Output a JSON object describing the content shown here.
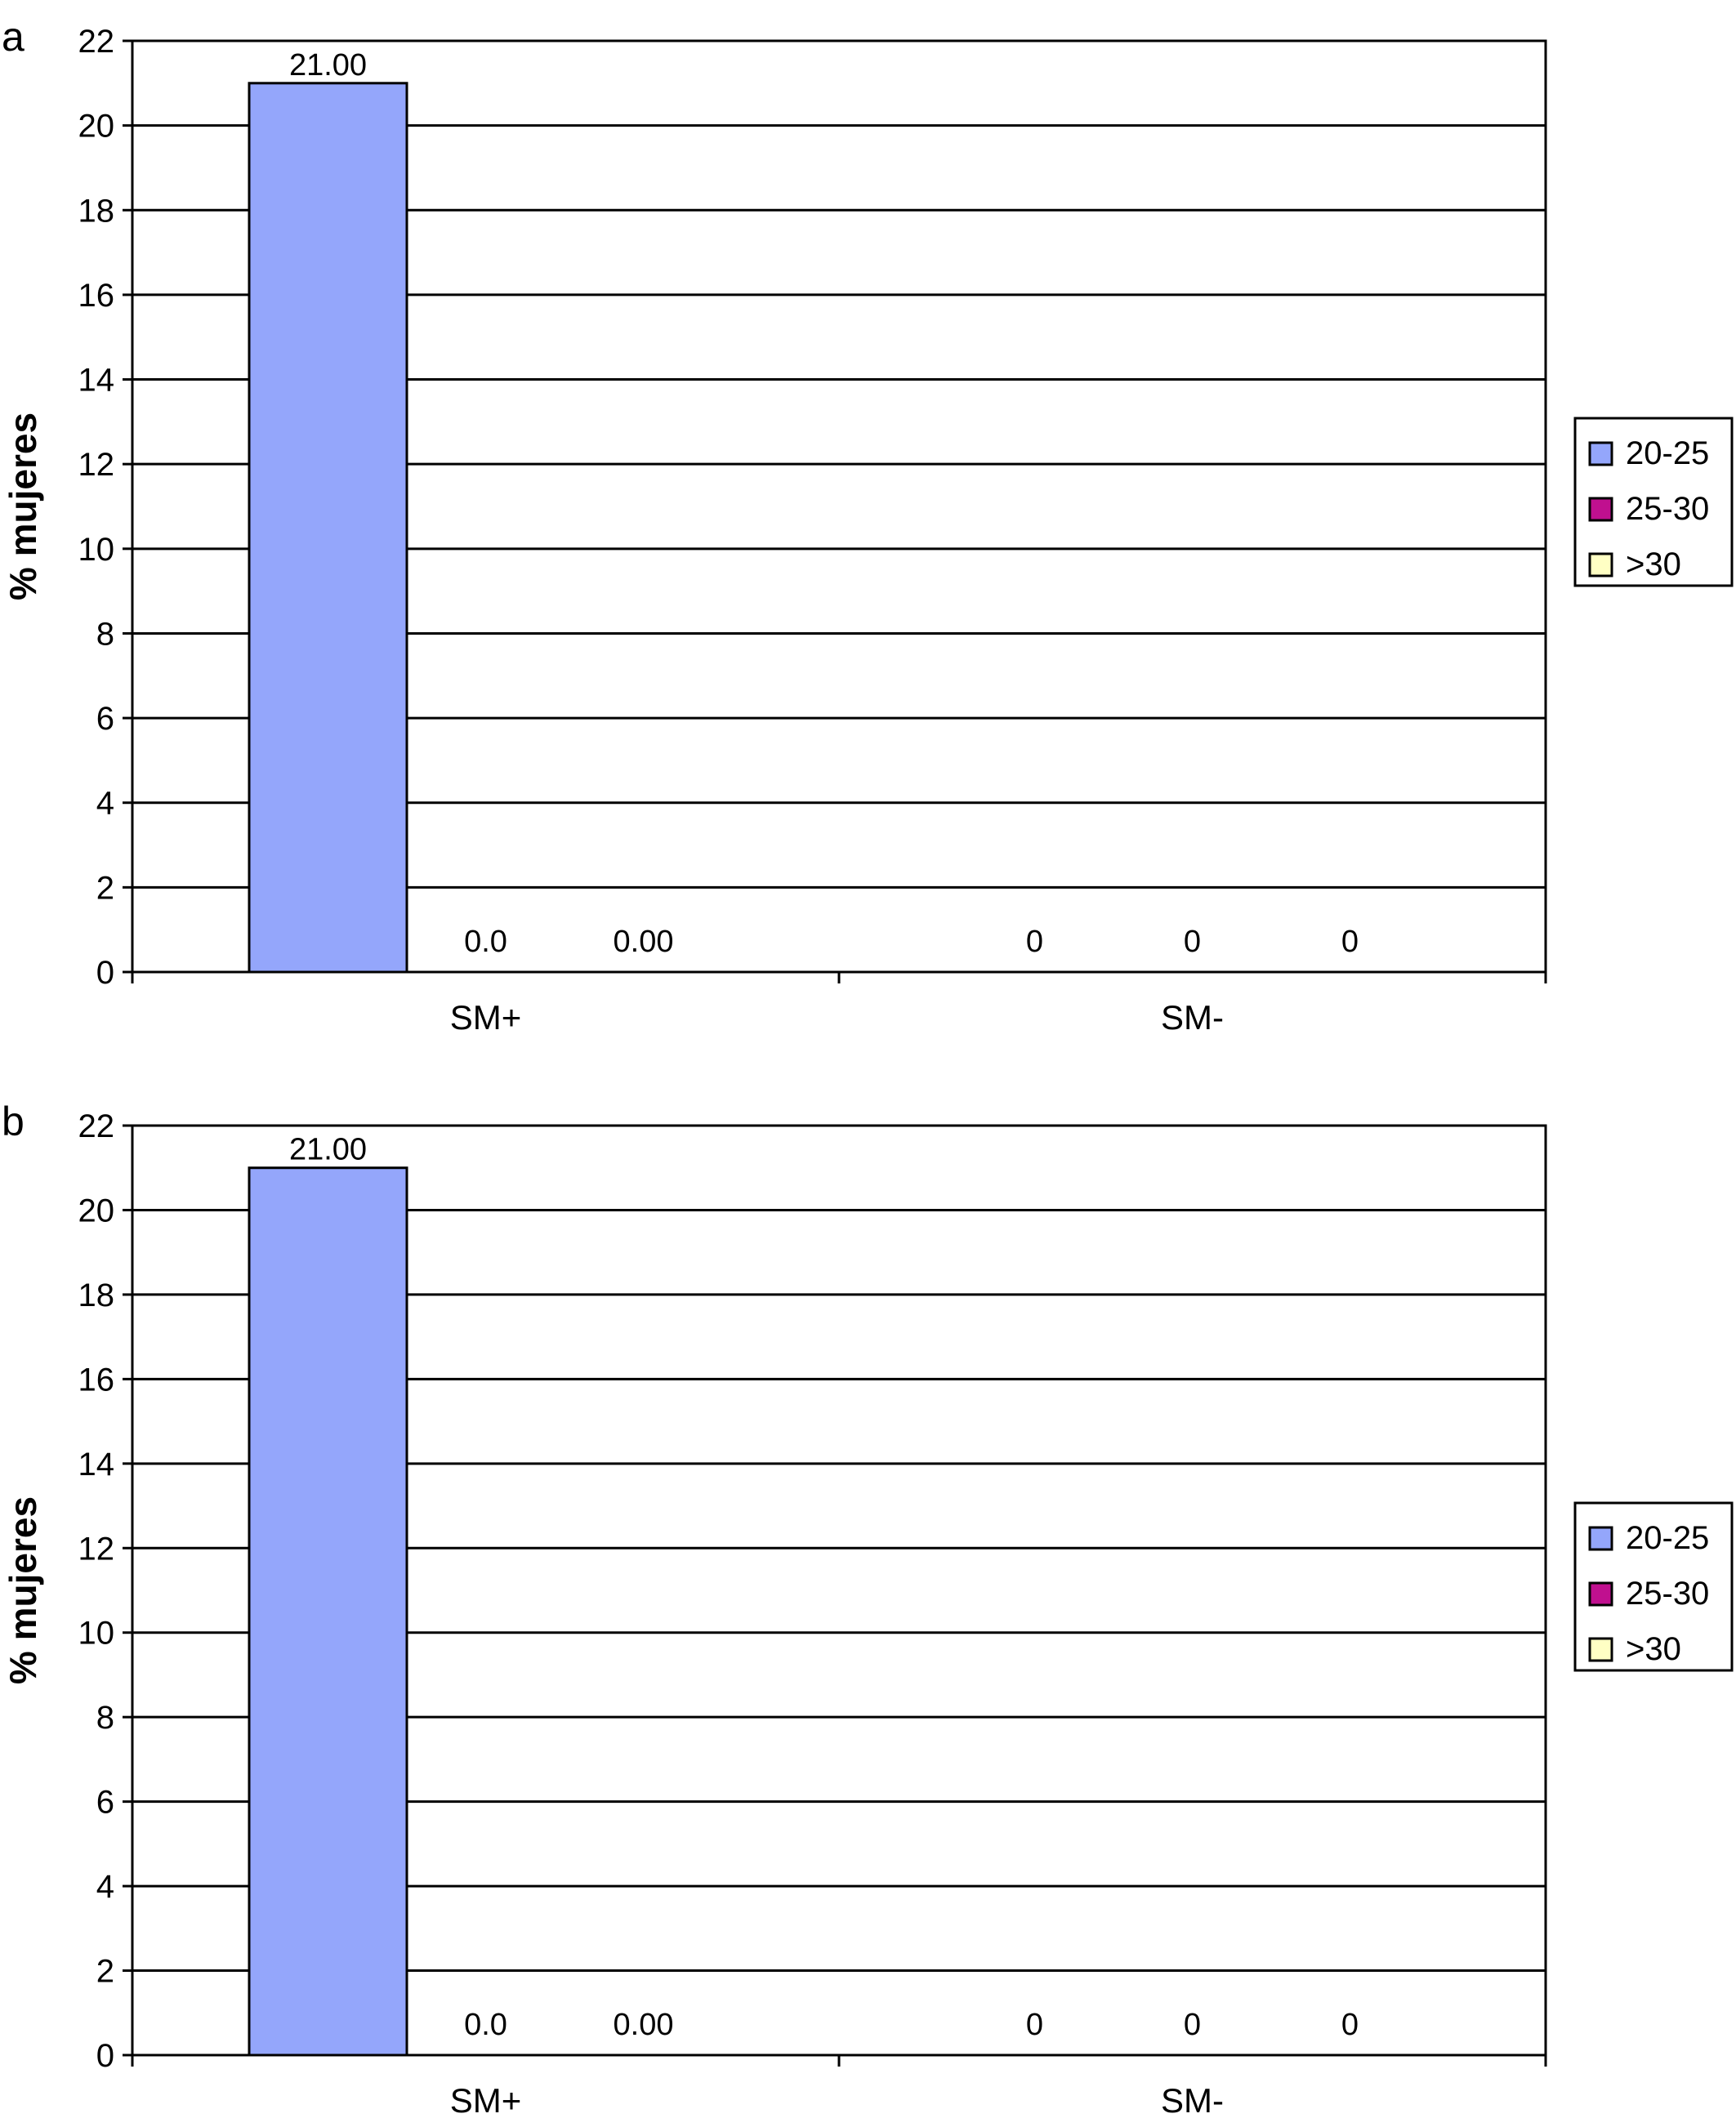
{
  "colors": {
    "s2025": "#94a6fb",
    "s2530": "#c0108f",
    "s30": "#ffffc4",
    "grid": "#000000",
    "axis": "#000000"
  },
  "chart_data": [
    {
      "type": "bar",
      "panel_label": "a",
      "ylabel": "% mujeres",
      "ylim": [
        0,
        22
      ],
      "yticks": [
        "0",
        "2",
        "4",
        "6",
        "8",
        "10",
        "12",
        "14",
        "16",
        "18",
        "20",
        "22"
      ],
      "categories": [
        "SM+",
        "SM-"
      ],
      "series": [
        {
          "name": "20-25",
          "values": [
            21,
            0
          ],
          "labels": [
            "21.00",
            "0"
          ]
        },
        {
          "name": "25-30",
          "values": [
            0,
            0
          ],
          "labels": [
            "0.0",
            "0"
          ]
        },
        {
          "name": ">30",
          "values": [
            0,
            0
          ],
          "labels": [
            "0.00",
            "0"
          ]
        }
      ],
      "legend": "right",
      "grid": true
    },
    {
      "type": "bar",
      "panel_label": "b",
      "ylabel": "% mujeres",
      "ylim": [
        0,
        22
      ],
      "yticks": [
        "0",
        "2",
        "4",
        "6",
        "8",
        "10",
        "12",
        "14",
        "16",
        "18",
        "20",
        "22"
      ],
      "categories": [
        "SM+",
        "SM-"
      ],
      "series": [
        {
          "name": "20-25",
          "values": [
            21,
            0
          ],
          "labels": [
            "21.00",
            "0"
          ]
        },
        {
          "name": "25-30",
          "values": [
            0,
            0
          ],
          "labels": [
            "0.0",
            "0"
          ]
        },
        {
          "name": ">30",
          "values": [
            0,
            0
          ],
          "labels": [
            "0.00",
            "0"
          ]
        }
      ],
      "legend": "right",
      "grid": true
    }
  ]
}
